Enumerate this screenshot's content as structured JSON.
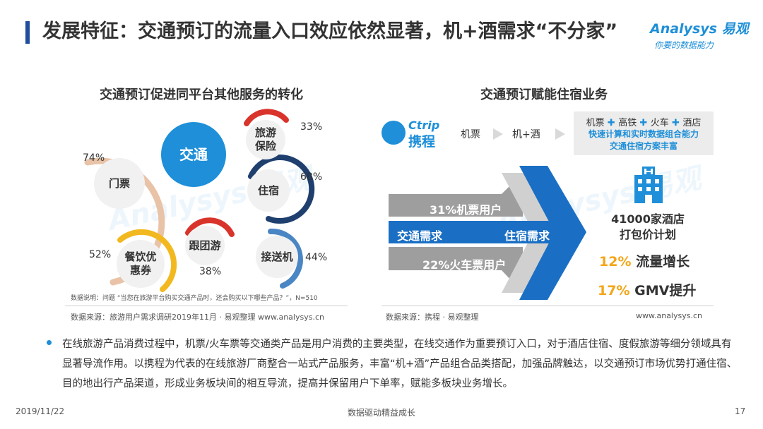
{
  "header": {
    "title": "发展特征：交通预订的流量入口效应依然显著，机+酒需求“不分家”",
    "logo_brand": "Analysys 易观",
    "logo_slogan": "你要的数据能力"
  },
  "left_panel": {
    "title": "交通预订促进同平台其他服务的转化",
    "center_label": "交通",
    "items": [
      {
        "label": "门票",
        "pct": "74%"
      },
      {
        "label": "旅游保险",
        "pct": "33%"
      },
      {
        "label": "住宿",
        "pct": "68%"
      },
      {
        "label": "跟团游",
        "pct": "38%"
      },
      {
        "label": "接送机",
        "pct": "44%"
      },
      {
        "label": "餐饮优惠券",
        "pct": "52%"
      }
    ],
    "note": "数据说明：问题 “当您在旅游平台购买交通产品时，还会购买以下哪些产品？”，N=510",
    "source": "数据来源：旅游用户需求调研2019年11月 · 易观整理 www.analysys.cn"
  },
  "right_panel": {
    "title": "交通预订赋能住宿业务",
    "ctrip_en": "Ctrip",
    "ctrip_cn": "携程",
    "flow_1": "机票",
    "flow_2": "机+酒",
    "box_items": [
      "机票",
      "高铁",
      "火车",
      "酒店"
    ],
    "box_line2": "快速计算和实时数据组合能力",
    "box_line3": "交通住宿方案丰富",
    "arrow_top": "31%机票用户",
    "arrow_left": "交通需求",
    "arrow_right": "住宿需求",
    "arrow_bottom": "22%火车票用户",
    "hotel_line1": "41000家酒店",
    "hotel_line2": "打包价计划",
    "stat1_num": "12%",
    "stat1_text": "流量增长",
    "stat2_num": "17%",
    "stat2_text": "GMV提升",
    "source": "数据来源：携程 · 易观整理",
    "site": "www.analysys.cn"
  },
  "body": {
    "text": "在线旅游产品消费过程中，机票/火车票等交通类产品是用户消费的主要类型，在线交通作为重要预订入口，对于酒店住宿、度假旅游等细分领域具有显著导流作用。以携程为代表的在线旅游厂商整合一站式产品服务，丰富“机+酒”产品组合品类搭配，加强品牌触达，以交通预订市场优势打通住宿、目的地出行产品渠道，形成业务板块间的相互导流，提高并保留用户下单率，赋能多板块业务增长。"
  },
  "footer": {
    "date": "2019/11/22",
    "center": "数据驱动精益成长",
    "page": "17"
  },
  "colors": {
    "accent_blue": "#1e8fd8",
    "arrow_blue": "#1a6fc4",
    "orange": "#f3a61a",
    "red": "#d9342b",
    "peach": "#e9c3a7",
    "yellow": "#f2b81f",
    "steel_blue": "#4b86c4",
    "navy": "#1f3f6e",
    "gray": "#bfbfbf"
  }
}
